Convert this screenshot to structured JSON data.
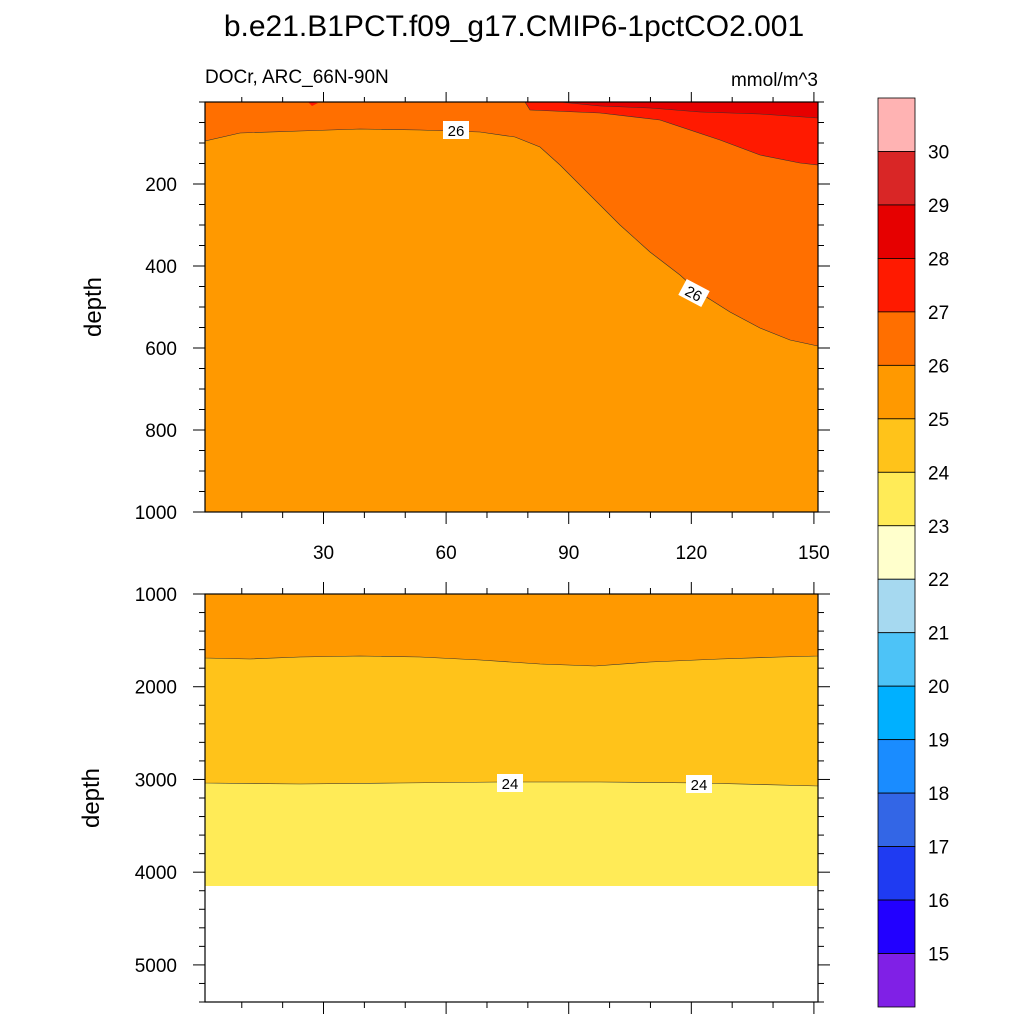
{
  "title": "b.e21.B1PCT.f09_g17.CMIP6-1pctCO2.001",
  "chart_data": [
    {
      "type": "contour",
      "panel": "upper",
      "left_label": "DOCr, ARC_66N-90N",
      "right_label": "mmol/m^3",
      "ylabel": "depth",
      "xlabel": "",
      "xlim": [
        1,
        151
      ],
      "ylim": [
        0,
        1000
      ],
      "y_reversed": true,
      "x_ticks": [
        30,
        60,
        90,
        120,
        150
      ],
      "y_ticks": [
        200,
        400,
        600,
        800,
        1000
      ],
      "contour_line_labels": [
        "26",
        "26"
      ],
      "regions": [
        {
          "level": "25-26",
          "color": "#FF9900"
        },
        {
          "level": "26-27",
          "color": "#FF6F00"
        },
        {
          "level": "27-28",
          "color": "#FF1A00"
        },
        {
          "level": "28-29",
          "color": "#E60000"
        }
      ]
    },
    {
      "type": "contour",
      "panel": "lower",
      "ylabel": "depth",
      "xlim": [
        1,
        151
      ],
      "ylim": [
        1000,
        5400
      ],
      "y_reversed": true,
      "y_ticks": [
        1000,
        2000,
        3000,
        4000,
        5000
      ],
      "contour_line_labels": [
        "24",
        "24"
      ],
      "regions": [
        {
          "level": "25-26",
          "color": "#FF9900"
        },
        {
          "level": "24-25",
          "color": "#FFC31A"
        },
        {
          "level": "23-24",
          "color": "#FFEB57"
        },
        {
          "level": "missing",
          "color": "#FFFFFF"
        }
      ]
    }
  ],
  "colorbar": {
    "labels": [
      "30",
      "29",
      "28",
      "27",
      "26",
      "25",
      "24",
      "23",
      "22",
      "21",
      "20",
      "19",
      "18",
      "17",
      "16",
      "15"
    ],
    "colors": [
      "#FFB3B3",
      "#D92626",
      "#E60000",
      "#FF1A00",
      "#FF6F00",
      "#FF9900",
      "#FFC31A",
      "#FFEB57",
      "#FFFFCC",
      "#A6D9F0",
      "#4DC3F7",
      "#00B0FF",
      "#1A8CFF",
      "#3366E6",
      "#1F3BF2",
      "#2200FF",
      "#8020E6"
    ]
  }
}
